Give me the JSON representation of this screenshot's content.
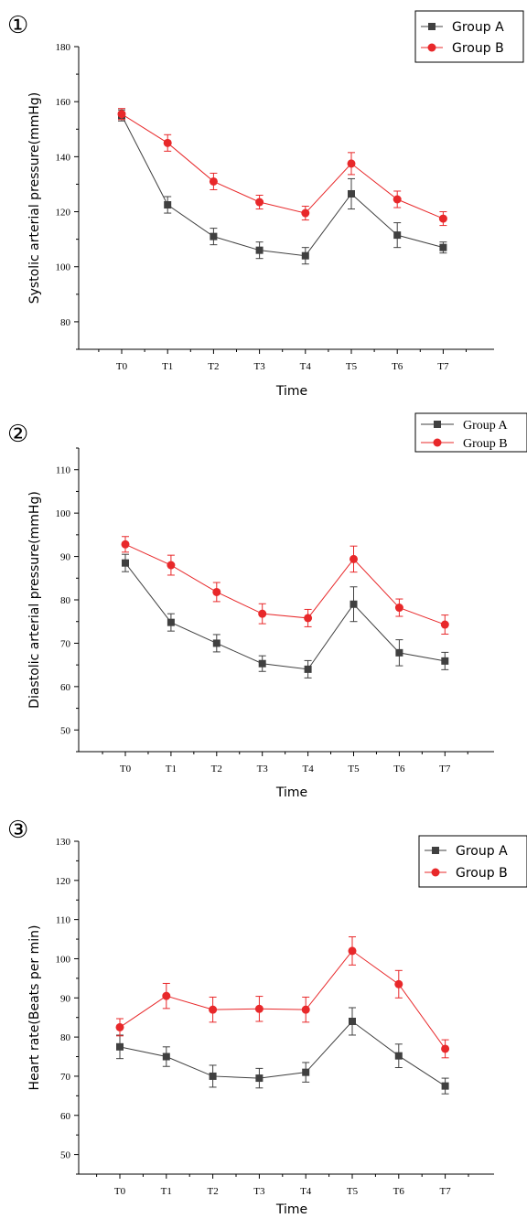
{
  "chart_data": [
    {
      "type": "line",
      "panel_label": "①",
      "categories": [
        "T0",
        "T1",
        "T2",
        "T3",
        "T4",
        "T5",
        "T6",
        "T7"
      ],
      "series": [
        {
          "name": "Group A",
          "color": "#404040",
          "marker": "square",
          "values": [
            155,
            122.5,
            111,
            106,
            104,
            126.5,
            111.5,
            107
          ],
          "errors": [
            2,
            3,
            3,
            3,
            3,
            5.5,
            4.5,
            2
          ]
        },
        {
          "name": "Group B",
          "color": "#e8282a",
          "marker": "circle",
          "values": [
            155.5,
            145,
            131,
            123.5,
            119.5,
            137.5,
            124.5,
            117.5
          ],
          "errors": [
            2,
            3,
            3,
            2.5,
            2.5,
            4,
            3,
            2.5
          ]
        }
      ],
      "xlabel": "Time",
      "ylabel": "Systolic arterial pressure(mmHg)",
      "ylim": [
        70,
        180
      ],
      "yticks": [
        80,
        100,
        120,
        140,
        160,
        180
      ],
      "legend": "top-right",
      "grid": false
    },
    {
      "type": "line",
      "panel_label": "②",
      "categories": [
        "T0",
        "T1",
        "T2",
        "T3",
        "T4",
        "T5",
        "T6",
        "T7"
      ],
      "series": [
        {
          "name": "Group A",
          "color": "#404040",
          "marker": "square",
          "values": [
            88.5,
            74.8,
            70,
            65.3,
            64,
            79,
            67.8,
            65.9
          ],
          "errors": [
            2,
            2,
            2,
            1.8,
            2,
            4,
            3,
            2
          ]
        },
        {
          "name": "Group B",
          "color": "#e8282a",
          "marker": "circle",
          "values": [
            92.8,
            88,
            81.8,
            76.8,
            75.8,
            89.4,
            78.2,
            74.3
          ],
          "errors": [
            1.8,
            2.3,
            2.2,
            2.3,
            2,
            3,
            2,
            2.2
          ]
        }
      ],
      "xlabel": "Time",
      "ylabel": "Diastolic arterial pressure(mmHg)",
      "ylim": [
        45,
        115
      ],
      "yticks": [
        50,
        60,
        70,
        80,
        90,
        100,
        110
      ],
      "legend": "top-right",
      "grid": false
    },
    {
      "type": "line",
      "panel_label": "③",
      "categories": [
        "T0",
        "T1",
        "T2",
        "T3",
        "T4",
        "T5",
        "T6",
        "T7"
      ],
      "series": [
        {
          "name": "Group A",
          "color": "#404040",
          "marker": "square",
          "values": [
            77.5,
            75,
            70,
            69.5,
            71,
            84,
            75.2,
            67.5
          ],
          "errors": [
            3,
            2.5,
            2.8,
            2.5,
            2.5,
            3.5,
            3,
            2
          ]
        },
        {
          "name": "Group B",
          "color": "#e8282a",
          "marker": "circle",
          "values": [
            82.5,
            90.5,
            87,
            87.2,
            87,
            102,
            93.5,
            77
          ],
          "errors": [
            2.2,
            3.2,
            3.2,
            3.2,
            3.2,
            3.6,
            3.5,
            2.3
          ]
        }
      ],
      "xlabel": "Time",
      "ylabel": "Heart rate(Beats per min)",
      "ylim": [
        45,
        130
      ],
      "yticks": [
        50,
        60,
        70,
        80,
        90,
        100,
        110,
        120,
        130
      ],
      "legend": "top-right",
      "grid": false
    }
  ]
}
